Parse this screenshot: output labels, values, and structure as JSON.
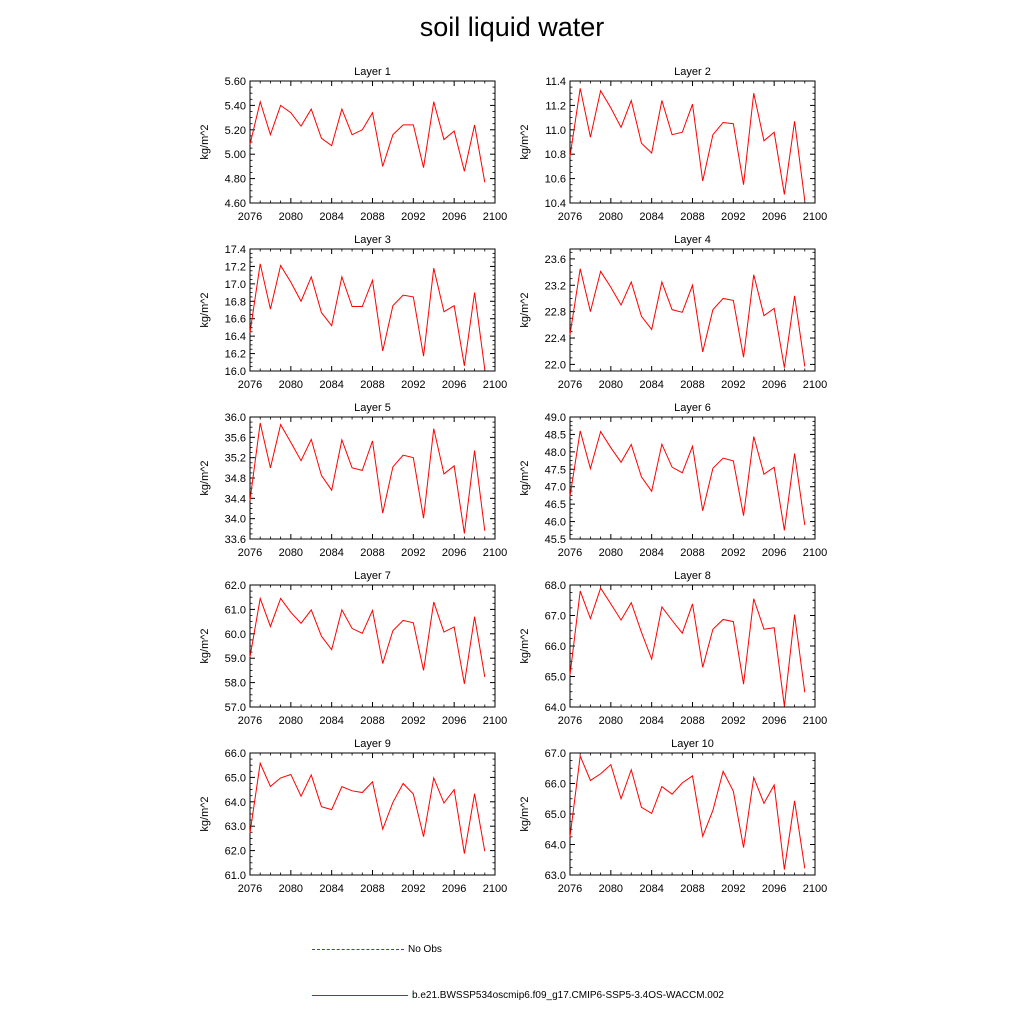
{
  "title": "soil liquid water",
  "colors": {
    "model": "#ff0000",
    "obs": "#3b3bd6",
    "axis": "#000000"
  },
  "legend": {
    "obs_label": "No Obs",
    "model_label": "b.e21.BWSSP534oscmip6.f09_g17.CMIP6-SSP5-3.4OS-WACCM.002"
  },
  "chart_data": [
    {
      "type": "line",
      "title": "Layer 1",
      "ylabel": "kg/m^2",
      "xlim": [
        2076,
        2100
      ],
      "xticks": [
        "2076",
        "2080",
        "2084",
        "2088",
        "2092",
        "2096",
        "2100"
      ],
      "ylim": [
        4.6,
        5.6
      ],
      "yticks": [
        "4.60",
        "4.80",
        "5.00",
        "5.20",
        "5.40",
        "5.60"
      ],
      "series": [
        {
          "x": [
            2076,
            2077,
            2078,
            2079,
            2080,
            2081,
            2082,
            2083,
            2084,
            2085,
            2086,
            2087,
            2088,
            2089,
            2090,
            2091,
            2092,
            2093,
            2094,
            2095,
            2096,
            2097,
            2098,
            2099
          ],
          "values": [
            5.08,
            5.43,
            5.16,
            5.4,
            5.34,
            5.23,
            5.37,
            5.13,
            5.07,
            5.37,
            5.16,
            5.2,
            5.34,
            4.9,
            5.16,
            5.24,
            5.24,
            4.89,
            5.43,
            5.12,
            5.19,
            4.86,
            5.24,
            4.77
          ]
        }
      ]
    },
    {
      "type": "line",
      "title": "Layer 2",
      "ylabel": "kg/m^2",
      "xlim": [
        2076,
        2100
      ],
      "xticks": [
        "2076",
        "2080",
        "2084",
        "2088",
        "2092",
        "2096",
        "2100"
      ],
      "ylim": [
        10.4,
        11.4
      ],
      "yticks": [
        "10.4",
        "10.6",
        "10.8",
        "11.0",
        "11.2",
        "11.4"
      ],
      "series": [
        {
          "x": [
            2076,
            2077,
            2078,
            2079,
            2080,
            2081,
            2082,
            2083,
            2084,
            2085,
            2086,
            2087,
            2088,
            2089,
            2090,
            2091,
            2092,
            2093,
            2094,
            2095,
            2096,
            2097,
            2098,
            2099
          ],
          "values": [
            10.78,
            11.34,
            10.94,
            11.32,
            11.18,
            11.02,
            11.24,
            10.89,
            10.81,
            11.24,
            10.96,
            10.98,
            11.21,
            10.58,
            10.96,
            11.06,
            11.05,
            10.55,
            11.3,
            10.91,
            10.98,
            10.47,
            11.07,
            10.42
          ]
        }
      ]
    },
    {
      "type": "line",
      "title": "Layer 3",
      "ylabel": "kg/m^2",
      "xlim": [
        2076,
        2100
      ],
      "xticks": [
        "2076",
        "2080",
        "2084",
        "2088",
        "2092",
        "2096",
        "2100"
      ],
      "ylim": [
        16.0,
        17.4
      ],
      "yticks": [
        "16.0",
        "16.2",
        "16.4",
        "16.6",
        "16.8",
        "17.0",
        "17.2",
        "17.4"
      ],
      "series": [
        {
          "x": [
            2076,
            2077,
            2078,
            2079,
            2080,
            2081,
            2082,
            2083,
            2084,
            2085,
            2086,
            2087,
            2088,
            2089,
            2090,
            2091,
            2092,
            2093,
            2094,
            2095,
            2096,
            2097,
            2098,
            2099
          ],
          "values": [
            16.44,
            17.23,
            16.71,
            17.21,
            17.02,
            16.8,
            17.08,
            16.67,
            16.52,
            17.08,
            16.74,
            16.74,
            17.04,
            16.23,
            16.75,
            16.87,
            16.85,
            16.17,
            17.18,
            16.68,
            16.75,
            16.06,
            16.9,
            16.02
          ]
        }
      ]
    },
    {
      "type": "line",
      "title": "Layer 4",
      "ylabel": "kg/m^2",
      "xlim": [
        2076,
        2100
      ],
      "xticks": [
        "2076",
        "2080",
        "2084",
        "2088",
        "2092",
        "2096",
        "2100"
      ],
      "ylim": [
        21.9,
        23.75
      ],
      "yticks": [
        "22.0",
        "22.4",
        "22.8",
        "23.2",
        "23.6"
      ],
      "series": [
        {
          "x": [
            2076,
            2077,
            2078,
            2079,
            2080,
            2081,
            2082,
            2083,
            2084,
            2085,
            2086,
            2087,
            2088,
            2089,
            2090,
            2091,
            2092,
            2093,
            2094,
            2095,
            2096,
            2097,
            2098,
            2099
          ],
          "values": [
            22.45,
            23.45,
            22.8,
            23.41,
            23.17,
            22.9,
            23.25,
            22.73,
            22.53,
            23.25,
            22.83,
            22.79,
            23.2,
            22.19,
            22.83,
            23.0,
            22.97,
            22.11,
            23.36,
            22.74,
            22.85,
            21.95,
            23.04,
            21.97
          ]
        }
      ]
    },
    {
      "type": "line",
      "title": "Layer 5",
      "ylabel": "kg/m^2",
      "xlim": [
        2076,
        2100
      ],
      "xticks": [
        "2076",
        "2080",
        "2084",
        "2088",
        "2092",
        "2096",
        "2100"
      ],
      "ylim": [
        33.6,
        36.0
      ],
      "yticks": [
        "33.6",
        "34.0",
        "34.4",
        "34.8",
        "35.2",
        "35.6",
        "36.0"
      ],
      "series": [
        {
          "x": [
            2076,
            2077,
            2078,
            2079,
            2080,
            2081,
            2082,
            2083,
            2084,
            2085,
            2086,
            2087,
            2088,
            2089,
            2090,
            2091,
            2092,
            2093,
            2094,
            2095,
            2096,
            2097,
            2098,
            2099
          ],
          "values": [
            34.36,
            35.88,
            35.0,
            35.85,
            35.5,
            35.14,
            35.56,
            34.85,
            34.56,
            35.55,
            35.0,
            34.95,
            35.53,
            34.11,
            35.02,
            35.25,
            35.2,
            34.01,
            35.77,
            34.88,
            35.04,
            33.71,
            35.34,
            33.76
          ]
        }
      ]
    },
    {
      "type": "line",
      "title": "Layer 6",
      "ylabel": "kg/m^2",
      "xlim": [
        2076,
        2100
      ],
      "xticks": [
        "2076",
        "2080",
        "2084",
        "2088",
        "2092",
        "2096",
        "2100"
      ],
      "ylim": [
        45.5,
        49.0
      ],
      "yticks": [
        "45.5",
        "46.0",
        "46.5",
        "47.0",
        "47.5",
        "48.0",
        "48.5",
        "49.0"
      ],
      "series": [
        {
          "x": [
            2076,
            2077,
            2078,
            2079,
            2080,
            2081,
            2082,
            2083,
            2084,
            2085,
            2086,
            2087,
            2088,
            2089,
            2090,
            2091,
            2092,
            2093,
            2094,
            2095,
            2096,
            2097,
            2098,
            2099
          ],
          "values": [
            46.72,
            48.6,
            47.52,
            48.58,
            48.12,
            47.7,
            48.21,
            47.28,
            46.87,
            48.22,
            47.56,
            47.4,
            48.16,
            46.31,
            47.53,
            47.82,
            47.74,
            46.17,
            48.44,
            47.36,
            47.56,
            45.75,
            47.95,
            45.9
          ]
        }
      ]
    },
    {
      "type": "line",
      "title": "Layer 7",
      "ylabel": "kg/m^2",
      "xlim": [
        2076,
        2100
      ],
      "xticks": [
        "2076",
        "2080",
        "2084",
        "2088",
        "2092",
        "2096",
        "2100"
      ],
      "ylim": [
        57.0,
        62.0
      ],
      "yticks": [
        "57.0",
        "58.0",
        "59.0",
        "60.0",
        "61.0",
        "62.0"
      ],
      "series": [
        {
          "x": [
            2076,
            2077,
            2078,
            2079,
            2080,
            2081,
            2082,
            2083,
            2084,
            2085,
            2086,
            2087,
            2088,
            2089,
            2090,
            2091,
            2092,
            2093,
            2094,
            2095,
            2096,
            2097,
            2098,
            2099
          ],
          "values": [
            59.05,
            61.45,
            60.3,
            61.45,
            60.88,
            60.43,
            60.98,
            59.9,
            59.35,
            60.98,
            60.22,
            60.02,
            60.96,
            58.78,
            60.13,
            60.55,
            60.45,
            58.5,
            61.3,
            60.07,
            60.28,
            57.95,
            60.7,
            58.23
          ]
        }
      ]
    },
    {
      "type": "line",
      "title": "Layer 8",
      "ylabel": "kg/m^2",
      "xlim": [
        2076,
        2100
      ],
      "xticks": [
        "2076",
        "2080",
        "2084",
        "2088",
        "2092",
        "2096",
        "2100"
      ],
      "ylim": [
        64.0,
        68.0
      ],
      "yticks": [
        "64.0",
        "65.0",
        "66.0",
        "67.0",
        "68.0"
      ],
      "series": [
        {
          "x": [
            2076,
            2077,
            2078,
            2079,
            2080,
            2081,
            2082,
            2083,
            2084,
            2085,
            2086,
            2087,
            2088,
            2089,
            2090,
            2091,
            2092,
            2093,
            2094,
            2095,
            2096,
            2097,
            2098,
            2099
          ],
          "values": [
            65.05,
            67.8,
            66.9,
            67.9,
            67.38,
            66.85,
            67.42,
            66.45,
            65.57,
            67.28,
            66.84,
            66.42,
            67.38,
            65.3,
            66.55,
            66.87,
            66.8,
            64.75,
            67.55,
            66.55,
            66.6,
            64.03,
            67.03,
            64.48
          ]
        }
      ]
    },
    {
      "type": "line",
      "title": "Layer 9",
      "ylabel": "kg/m^2",
      "xlim": [
        2076,
        2100
      ],
      "xticks": [
        "2076",
        "2080",
        "2084",
        "2088",
        "2092",
        "2096",
        "2100"
      ],
      "ylim": [
        61.0,
        66.0
      ],
      "yticks": [
        "61.0",
        "62.0",
        "63.0",
        "64.0",
        "65.0",
        "66.0"
      ],
      "series": [
        {
          "x": [
            2076,
            2077,
            2078,
            2079,
            2080,
            2081,
            2082,
            2083,
            2084,
            2085,
            2086,
            2087,
            2088,
            2089,
            2090,
            2091,
            2092,
            2093,
            2094,
            2095,
            2096,
            2097,
            2098,
            2099
          ],
          "values": [
            62.72,
            65.58,
            64.63,
            64.98,
            65.12,
            64.23,
            65.1,
            63.8,
            63.68,
            64.62,
            64.45,
            64.38,
            64.82,
            62.88,
            63.98,
            64.75,
            64.32,
            62.57,
            64.98,
            63.95,
            64.5,
            61.88,
            64.33,
            61.97
          ]
        }
      ]
    },
    {
      "type": "line",
      "title": "Layer 10",
      "ylabel": "kg/m^2",
      "xlim": [
        2076,
        2100
      ],
      "xticks": [
        "2076",
        "2080",
        "2084",
        "2088",
        "2092",
        "2096",
        "2100"
      ],
      "ylim": [
        63.0,
        67.0
      ],
      "yticks": [
        "63.0",
        "64.0",
        "65.0",
        "66.0",
        "67.0"
      ],
      "series": [
        {
          "x": [
            2076,
            2077,
            2078,
            2079,
            2080,
            2081,
            2082,
            2083,
            2084,
            2085,
            2086,
            2087,
            2088,
            2089,
            2090,
            2091,
            2092,
            2093,
            2094,
            2095,
            2096,
            2097,
            2098,
            2099
          ],
          "values": [
            64.25,
            66.9,
            66.1,
            66.32,
            66.62,
            65.5,
            66.45,
            65.22,
            65.02,
            65.9,
            65.65,
            66.02,
            66.25,
            64.27,
            65.12,
            66.4,
            65.75,
            63.9,
            66.2,
            65.35,
            65.95,
            63.18,
            65.43,
            63.22
          ]
        }
      ]
    }
  ]
}
